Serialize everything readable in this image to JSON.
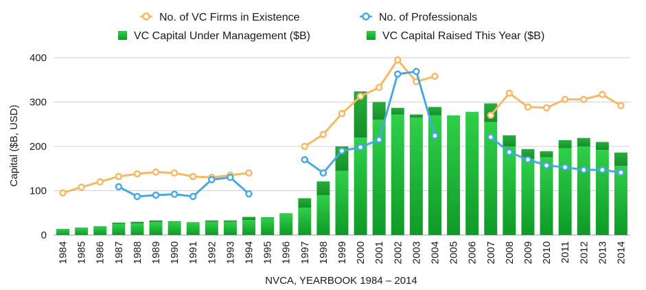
{
  "chart_data": {
    "type": "bar",
    "xlabel": "NVCA, YEARBOOK 1984 – 2014",
    "ylabel": "Capital ($B, USD)",
    "ylim": [
      0,
      400
    ],
    "yticks": [
      0,
      100,
      200,
      300,
      400
    ],
    "grid": true,
    "legend": "top",
    "categories": [
      "1984",
      "1985",
      "1986",
      "1987",
      "1988",
      "1989",
      "1990",
      "1991",
      "1992",
      "1993",
      "1994",
      "1995",
      "1996",
      "1997",
      "1998",
      "1999",
      "2000",
      "2001",
      "2002",
      "2003",
      "2004",
      "2005",
      "2006",
      "2007",
      "2008",
      "2009",
      "2010",
      "2011",
      "2012",
      "2013",
      "2014"
    ],
    "series": [
      {
        "name": "VC Capital Under Management ($B)",
        "kind": "bar",
        "color": "#14a32c",
        "values": [
          14,
          17,
          20,
          25,
          26,
          29,
          29,
          28,
          30,
          30,
          34,
          38,
          48,
          62,
          90,
          145,
          220,
          260,
          272,
          265,
          270,
          270,
          278,
          255,
          200,
          172,
          176,
          196,
          200,
          192,
          156
        ]
      },
      {
        "name": "VC Capital Raised This Year ($B)",
        "kind": "bar",
        "color": "#23b53a",
        "values": [
          14,
          17,
          20,
          28,
          30,
          33,
          31,
          29,
          33,
          33,
          41,
          40,
          49,
          83,
          121,
          200,
          324,
          300,
          287,
          272,
          289,
          270,
          278,
          297,
          225,
          194,
          189,
          214,
          219,
          210,
          186
        ]
      },
      {
        "name": "No. of VC Firms in Existence",
        "kind": "line",
        "color": "#f7b863",
        "values": [
          95,
          108,
          120,
          132,
          138,
          142,
          140,
          132,
          130,
          135,
          140,
          null,
          null,
          200,
          227,
          274,
          313,
          333,
          395,
          346,
          358,
          null,
          null,
          270,
          320,
          289,
          287,
          306,
          306,
          317,
          292
        ]
      },
      {
        "name": "No. of Professionals",
        "kind": "line",
        "color": "#46a9df",
        "values": [
          null,
          null,
          null,
          109,
          87,
          90,
          92,
          87,
          125,
          130,
          93,
          null,
          null,
          170,
          140,
          190,
          198,
          215,
          363,
          369,
          224,
          null,
          null,
          221,
          187,
          170,
          157,
          153,
          147,
          147,
          141
        ]
      }
    ]
  }
}
